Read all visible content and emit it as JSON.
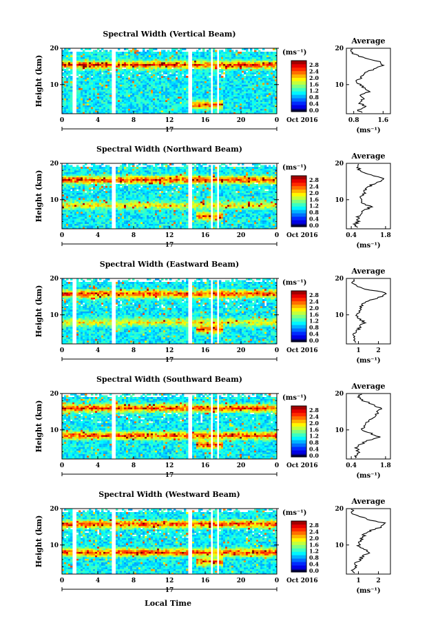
{
  "shared": {
    "y_label": "Height (km)",
    "x_label": "Local Time",
    "date_tick": "17",
    "date_label": "Oct 2016",
    "unit_label": "(ms⁻¹)",
    "average_title": "Average",
    "x_ticks": [
      "0",
      "4",
      "8",
      "12",
      "16",
      "20",
      "0"
    ],
    "y_ticks": [
      "20",
      "10"
    ],
    "colorbar_ticks": [
      "2.8",
      "2.4",
      "2.0",
      "1.6",
      "1.2",
      "0.8",
      "0.4",
      "0.0"
    ]
  },
  "chart_data": [
    {
      "type": "heatmap",
      "title": "Spectral Width (Vertical Beam)",
      "xlabel": "",
      "ylabel": "Height (km)",
      "xlim": [
        0,
        24
      ],
      "ylim": [
        2,
        20
      ],
      "colorbar": {
        "unit": "(ms⁻¹)",
        "range": [
          0,
          3.0
        ]
      },
      "data_gaps_hours": [
        [
          1.2,
          1.6
        ],
        [
          5.6,
          6.0
        ],
        [
          14.1,
          14.6
        ],
        [
          16.6,
          16.8
        ],
        [
          17.3,
          17.5
        ]
      ],
      "high_width_layers": [
        {
          "height_km": 15.5,
          "level": "high"
        },
        {
          "height_km": 4.5,
          "start_hour": 14.5,
          "end_hour": 18,
          "level": "high"
        }
      ],
      "average": {
        "title": "Average",
        "xticks": [
          "0.8",
          "1.6"
        ],
        "xlim": [
          0.6,
          1.8
        ],
        "profile": [
          [
            2.5,
            1.0
          ],
          [
            3,
            0.9
          ],
          [
            4,
            1.1
          ],
          [
            5,
            0.95
          ],
          [
            6,
            1.05
          ],
          [
            7,
            1.0
          ],
          [
            8,
            1.2
          ],
          [
            9,
            1.1
          ],
          [
            10,
            0.95
          ],
          [
            11,
            0.9
          ],
          [
            12,
            1.0
          ],
          [
            13,
            1.05
          ],
          [
            14,
            1.3
          ],
          [
            15,
            1.55
          ],
          [
            16,
            1.6
          ],
          [
            17,
            1.2
          ],
          [
            18,
            0.9
          ],
          [
            19,
            0.7
          ],
          [
            19.8,
            0.75
          ]
        ]
      }
    },
    {
      "type": "heatmap",
      "title": "Spectral Width (Northward Beam)",
      "xlabel": "",
      "ylabel": "Height (km)",
      "xlim": [
        0,
        24
      ],
      "ylim": [
        2,
        20
      ],
      "colorbar": {
        "unit": "(ms⁻¹)",
        "range": [
          0,
          3.0
        ]
      },
      "data_gaps_hours": [
        [
          5.6,
          6.0
        ],
        [
          14.1,
          14.6
        ],
        [
          16.6,
          16.8
        ],
        [
          17.3,
          17.5
        ]
      ],
      "high_width_layers": [
        {
          "height_km": 15.5,
          "level": "high"
        },
        {
          "height_km": 8.5,
          "level": "medium"
        },
        {
          "height_km": 5.5,
          "start_hour": 15,
          "end_hour": 18,
          "level": "high"
        }
      ],
      "average": {
        "title": "Average",
        "xticks": [
          "0.4",
          "1.8"
        ],
        "xlim": [
          0.2,
          2.0
        ],
        "profile": [
          [
            2.5,
            0.6
          ],
          [
            3,
            0.5
          ],
          [
            4,
            0.7
          ],
          [
            5,
            0.65
          ],
          [
            6,
            0.8
          ],
          [
            7,
            0.9
          ],
          [
            8,
            1.2
          ],
          [
            9,
            0.9
          ],
          [
            10,
            0.75
          ],
          [
            11,
            0.8
          ],
          [
            12,
            0.95
          ],
          [
            13,
            1.0
          ],
          [
            14,
            1.2
          ],
          [
            15,
            1.6
          ],
          [
            16,
            1.7
          ],
          [
            17,
            1.1
          ],
          [
            18,
            0.8
          ],
          [
            19,
            0.6
          ],
          [
            19.8,
            0.7
          ]
        ]
      }
    },
    {
      "type": "heatmap",
      "title": "Spectral Width (Eastward Beam)",
      "xlabel": "",
      "ylabel": "Height (km)",
      "xlim": [
        0,
        24
      ],
      "ylim": [
        2,
        20
      ],
      "colorbar": {
        "unit": "(ms⁻¹)",
        "range": [
          0,
          3.0
        ]
      },
      "data_gaps_hours": [
        [
          1.2,
          1.6
        ],
        [
          5.6,
          6.0
        ],
        [
          14.1,
          14.6
        ],
        [
          16.6,
          16.8
        ],
        [
          17.3,
          17.5
        ]
      ],
      "high_width_layers": [
        {
          "height_km": 15.8,
          "level": "high"
        },
        {
          "height_km": 8.0,
          "level": "medium"
        },
        {
          "height_km": 6.0,
          "start_hour": 15,
          "end_hour": 18,
          "level": "high"
        }
      ],
      "average": {
        "title": "Average",
        "xticks": [
          "1",
          "2"
        ],
        "xlim": [
          0.4,
          2.6
        ],
        "profile": [
          [
            2.5,
            0.8
          ],
          [
            3,
            0.75
          ],
          [
            4,
            0.85
          ],
          [
            5,
            0.8
          ],
          [
            6,
            1.0
          ],
          [
            7,
            1.1
          ],
          [
            8,
            1.3
          ],
          [
            9,
            1.05
          ],
          [
            10,
            0.9
          ],
          [
            11,
            1.0
          ],
          [
            12,
            1.1
          ],
          [
            13,
            1.2
          ],
          [
            14,
            1.5
          ],
          [
            15,
            2.2
          ],
          [
            16,
            2.4
          ],
          [
            17,
            1.4
          ],
          [
            18,
            0.9
          ],
          [
            19,
            0.7
          ],
          [
            19.8,
            0.8
          ]
        ]
      }
    },
    {
      "type": "heatmap",
      "title": "Spectral Width (Southward Beam)",
      "xlabel": "",
      "ylabel": "Height (km)",
      "xlim": [
        0,
        24
      ],
      "ylim": [
        2,
        20
      ],
      "colorbar": {
        "unit": "(ms⁻¹)",
        "range": [
          0,
          3.0
        ]
      },
      "data_gaps_hours": [
        [
          5.6,
          6.0
        ],
        [
          14.1,
          14.6
        ],
        [
          16.6,
          16.8
        ],
        [
          17.3,
          17.5
        ]
      ],
      "high_width_layers": [
        {
          "height_km": 16.0,
          "level": "high"
        },
        {
          "height_km": 8.5,
          "level": "high"
        },
        {
          "height_km": 6.0,
          "start_hour": 15,
          "end_hour": 18,
          "level": "high"
        }
      ],
      "average": {
        "title": "Average",
        "xticks": [
          "0.4",
          "1.8"
        ],
        "xlim": [
          0.2,
          2.0
        ],
        "profile": [
          [
            2.5,
            0.6
          ],
          [
            3,
            0.55
          ],
          [
            4,
            0.7
          ],
          [
            5,
            0.6
          ],
          [
            6,
            0.8
          ],
          [
            7,
            1.0
          ],
          [
            8,
            1.6
          ],
          [
            9,
            1.2
          ],
          [
            10,
            0.8
          ],
          [
            11,
            0.9
          ],
          [
            12,
            1.0
          ],
          [
            13,
            1.2
          ],
          [
            14,
            1.4
          ],
          [
            15,
            1.5
          ],
          [
            16,
            1.6
          ],
          [
            17,
            1.3
          ],
          [
            18,
            0.9
          ],
          [
            19,
            0.7
          ],
          [
            19.8,
            0.8
          ]
        ]
      }
    },
    {
      "type": "heatmap",
      "title": "Spectral Width (Westward Beam)",
      "xlabel": "",
      "ylabel": "Height (km)",
      "xlim": [
        0,
        24
      ],
      "ylim": [
        2,
        20
      ],
      "colorbar": {
        "unit": "(ms⁻¹)",
        "range": [
          0,
          3.0
        ]
      },
      "data_gaps_hours": [
        [
          1.2,
          1.6
        ],
        [
          5.6,
          6.0
        ],
        [
          14.1,
          14.6
        ],
        [
          16.6,
          16.8
        ],
        [
          17.3,
          17.5
        ]
      ],
      "high_width_layers": [
        {
          "height_km": 15.8,
          "level": "high"
        },
        {
          "height_km": 8.0,
          "level": "high"
        },
        {
          "height_km": 5.5,
          "start_hour": 15,
          "end_hour": 18,
          "level": "high"
        }
      ],
      "average": {
        "title": "Average",
        "xticks": [
          "1",
          "2"
        ],
        "xlim": [
          0.4,
          2.6
        ],
        "profile": [
          [
            2.5,
            0.8
          ],
          [
            3,
            0.7
          ],
          [
            4,
            0.9
          ],
          [
            5,
            0.85
          ],
          [
            6,
            1.1
          ],
          [
            7,
            1.2
          ],
          [
            8,
            1.6
          ],
          [
            9,
            1.2
          ],
          [
            10,
            1.0
          ],
          [
            11,
            1.1
          ],
          [
            12,
            1.2
          ],
          [
            13,
            1.3
          ],
          [
            14,
            1.6
          ],
          [
            15,
            2.2
          ],
          [
            16,
            2.3
          ],
          [
            17,
            1.5
          ],
          [
            18,
            1.0
          ],
          [
            19,
            0.6
          ],
          [
            19.8,
            0.7
          ]
        ]
      }
    }
  ]
}
